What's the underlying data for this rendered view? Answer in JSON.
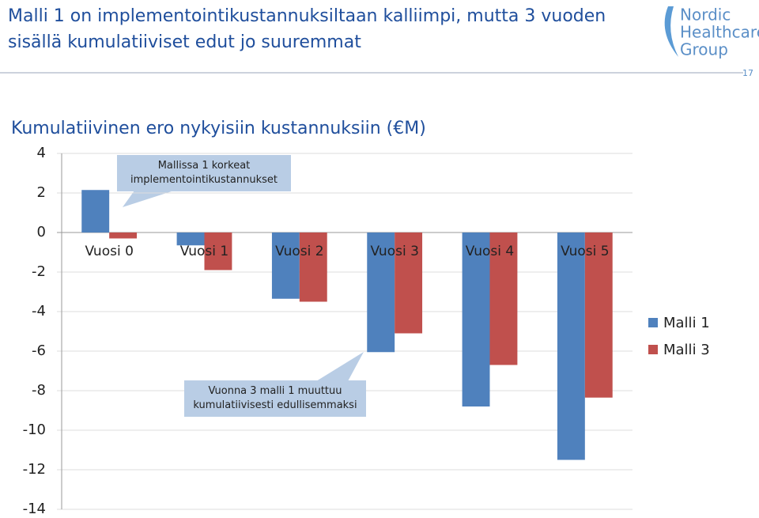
{
  "header": {
    "title": "Malli 1 on implementointikustannuksiltaan kalliimpi, mutta 3 vuoden sisällä kumulatiiviset edut jo suuremmat"
  },
  "logo": {
    "lines": [
      "Nordic",
      "Healthcare",
      "Group"
    ]
  },
  "page_number": "17",
  "chart_data": {
    "type": "bar",
    "subtitle": "Kumulatiivinen ero nykyisiin kustannuksiin (€M)",
    "categories": [
      "Vuosi 0",
      "Vuosi 1",
      "Vuosi 2",
      "Vuosi 3",
      "Vuosi 4",
      "Vuosi 5"
    ],
    "series": [
      {
        "name": "Malli 1",
        "color": "#4f81bd",
        "values": [
          2.15,
          -0.65,
          -3.35,
          -6.05,
          -8.8,
          -11.5
        ]
      },
      {
        "name": "Malli 3",
        "color": "#c0504d",
        "values": [
          -0.3,
          -1.9,
          -3.5,
          -5.1,
          -6.7,
          -8.35
        ]
      }
    ],
    "ylim": [
      -14,
      4
    ],
    "yticks": [
      -14,
      -12,
      -10,
      -8,
      -6,
      -4,
      -2,
      0,
      2,
      4
    ],
    "grid": true,
    "legend": "right",
    "annotations": [
      "Mallissa 1 korkeat implementointikustannukset",
      "Vuonna 3 malli 1 muuttuu kumulatiivisesti edullisemmaksi"
    ]
  }
}
